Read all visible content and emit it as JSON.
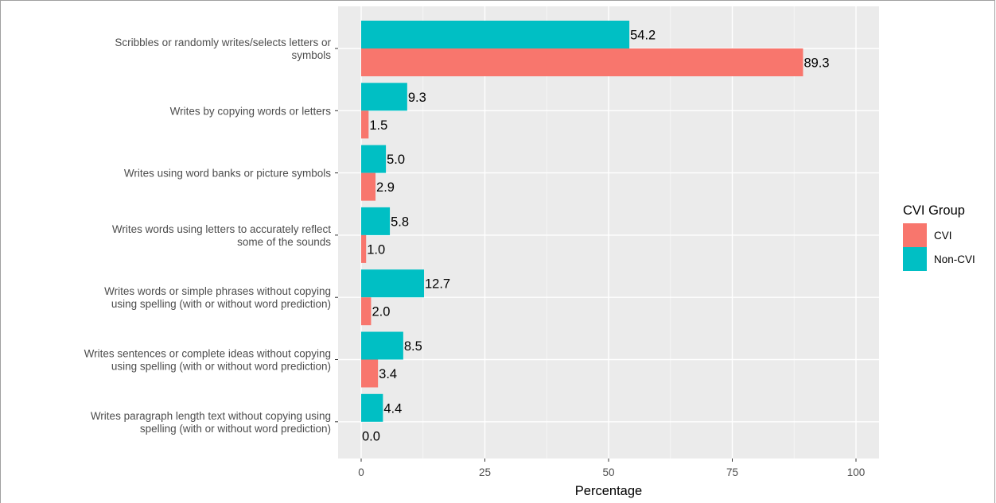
{
  "chart_data": {
    "type": "bar",
    "orientation": "horizontal",
    "categories": [
      [
        "Scribbles or randomly writes/selects letters or",
        "symbols"
      ],
      [
        "Writes by copying words or letters"
      ],
      [
        "Writes using word banks or picture symbols"
      ],
      [
        "Writes words using letters to accurately reflect",
        "some of the sounds"
      ],
      [
        "Writes words or simple phrases without copying",
        "using spelling (with or without word prediction)"
      ],
      [
        "Writes sentences or complete ideas without copying",
        "using spelling (with or without word prediction)"
      ],
      [
        "Writes paragraph length text without copying using",
        "spelling (with or without word prediction)"
      ]
    ],
    "series": [
      {
        "name": "Non-CVI",
        "color": "#00BFC4",
        "values": [
          54.2,
          9.3,
          5.0,
          5.8,
          12.7,
          8.5,
          4.4
        ],
        "labels": [
          "54.2",
          "9.3",
          "5.0",
          "5.8",
          "12.7",
          "8.5",
          "4.4"
        ]
      },
      {
        "name": "CVI",
        "color": "#F8766D",
        "values": [
          89.3,
          1.5,
          2.9,
          1.0,
          2.0,
          3.4,
          0.0
        ],
        "labels": [
          "89.3",
          "1.5",
          "2.9",
          "1.0",
          "2.0",
          "3.4",
          "0.0"
        ]
      }
    ],
    "xlabel": "Percentage",
    "ylabel": "",
    "xlim": [
      0,
      100
    ],
    "xticks": [
      "0",
      "25",
      "50",
      "75",
      "100"
    ],
    "grid": true,
    "legend": {
      "title": "CVI Group",
      "position": "right",
      "entries": [
        {
          "name": "CVI",
          "color": "#F8766D"
        },
        {
          "name": "Non-CVI",
          "color": "#00BFC4"
        }
      ]
    }
  }
}
